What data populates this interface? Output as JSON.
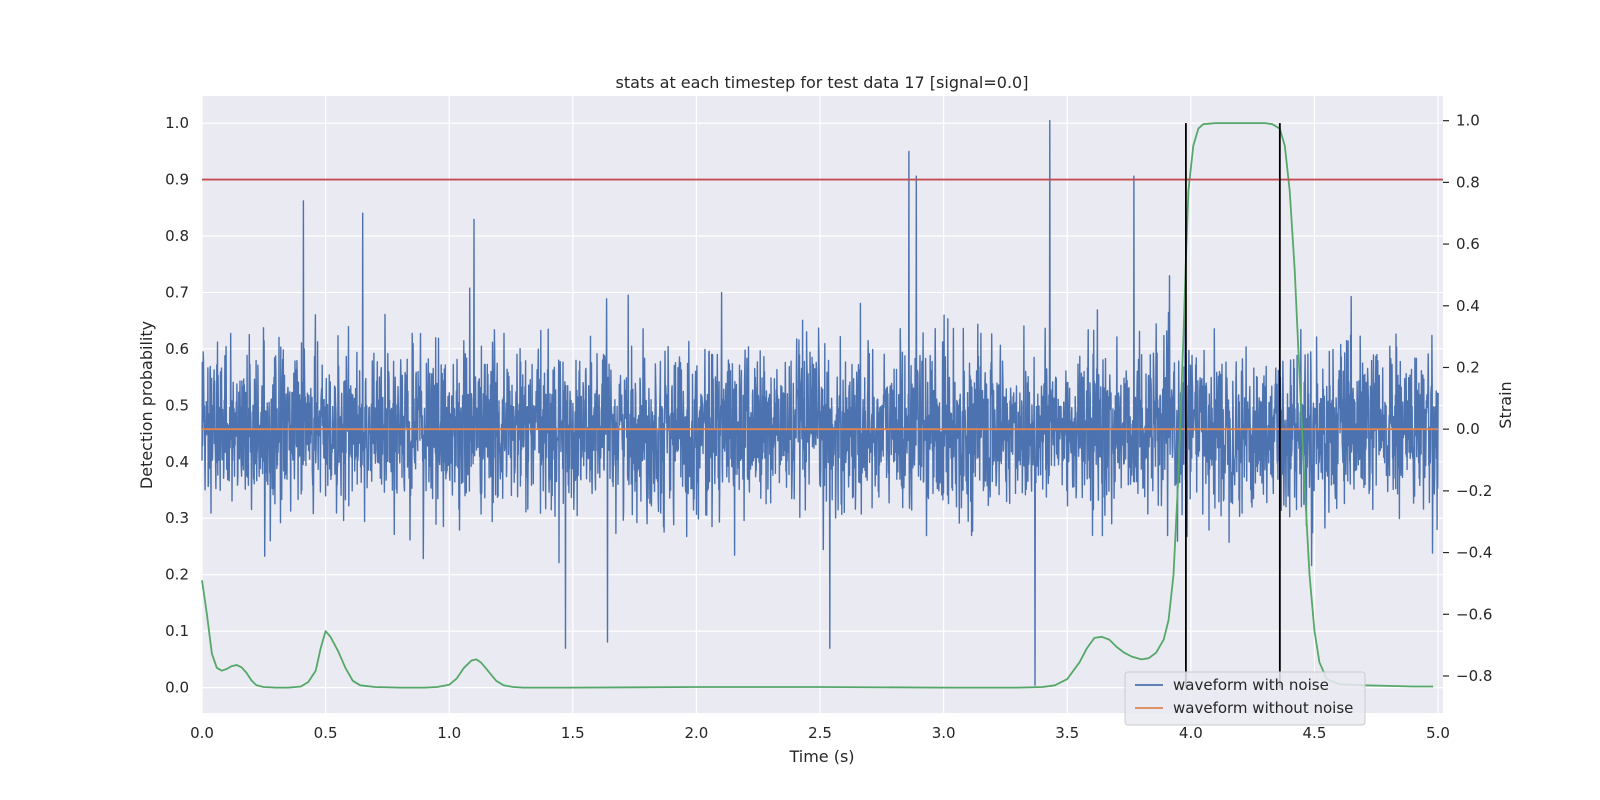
{
  "chart_data": {
    "type": "line",
    "title": "stats at each timestep for test data 17 [signal=0.0]",
    "xlabel": "Time (s)",
    "ylabel": "Detection probability",
    "ylabel_right": "Strain",
    "xlim": [
      0.0,
      5.02
    ],
    "ylim": [
      -0.045,
      1.048
    ],
    "ylim_right": [
      -0.92,
      1.08
    ],
    "xticks": [
      0.0,
      0.5,
      1.0,
      1.5,
      2.0,
      2.5,
      3.0,
      3.5,
      4.0,
      4.5,
      5.0
    ],
    "xtick_labels": [
      "0.0",
      "0.5",
      "1.0",
      "1.5",
      "2.0",
      "2.5",
      "3.0",
      "3.5",
      "4.0",
      "4.5",
      "5.0"
    ],
    "yticks": [
      0.0,
      0.1,
      0.2,
      0.3,
      0.4,
      0.5,
      0.6,
      0.7,
      0.8,
      0.9,
      1.0
    ],
    "ytick_labels": [
      "0.0",
      "0.1",
      "0.2",
      "0.3",
      "0.4",
      "0.5",
      "0.6",
      "0.7",
      "0.8",
      "0.9",
      "1.0"
    ],
    "yticks_right": [
      -0.8,
      -0.6,
      -0.4,
      -0.2,
      0.0,
      0.2,
      0.4,
      0.6,
      0.8,
      1.0
    ],
    "ytick_labels_right": [
      "−0.8",
      "−0.6",
      "−0.4",
      "−0.2",
      "0.0",
      "0.2",
      "0.4",
      "0.6",
      "0.8",
      "1.0"
    ],
    "grid": true,
    "legend_position": "lower-right",
    "colors": {
      "noise": "#4c72b0",
      "clean": "#dd8452",
      "probability": "#55a868",
      "threshold": "#c44e52",
      "boundary": "#000000",
      "background": "#eaeaf2",
      "grid": "#ffffff"
    },
    "series": [
      {
        "name": "waveform with noise",
        "axis": "right",
        "x_range": [
          0.0,
          5.0
        ],
        "noise_std": 0.13,
        "mean": 0.0,
        "peaks": [
          {
            "x": 0.41,
            "y": 0.74
          },
          {
            "x": 0.65,
            "y": 0.7
          },
          {
            "x": 1.1,
            "y": 0.68
          },
          {
            "x": 2.86,
            "y": 0.9
          },
          {
            "x": 2.89,
            "y": 0.82
          },
          {
            "x": 3.43,
            "y": 1.0
          },
          {
            "x": 3.77,
            "y": 0.82
          },
          {
            "x": 3.37,
            "y": -0.83
          },
          {
            "x": 1.47,
            "y": -0.71
          },
          {
            "x": 1.64,
            "y": -0.69
          },
          {
            "x": 2.54,
            "y": -0.71
          }
        ]
      },
      {
        "name": "waveform without noise",
        "axis": "right",
        "x": [
          0.0,
          5.0
        ],
        "y": [
          0.0,
          0.0
        ]
      },
      {
        "name": "",
        "axis": "left",
        "x": [
          0.0,
          0.02,
          0.04,
          0.06,
          0.08,
          0.1,
          0.12,
          0.14,
          0.16,
          0.18,
          0.2,
          0.22,
          0.25,
          0.3,
          0.35,
          0.4,
          0.43,
          0.46,
          0.48,
          0.5,
          0.52,
          0.55,
          0.58,
          0.61,
          0.64,
          0.7,
          0.8,
          0.9,
          0.95,
          1.0,
          1.03,
          1.06,
          1.09,
          1.11,
          1.13,
          1.16,
          1.19,
          1.22,
          1.26,
          1.3,
          1.5,
          2.0,
          2.5,
          3.0,
          3.3,
          3.4,
          3.45,
          3.5,
          3.55,
          3.58,
          3.61,
          3.64,
          3.67,
          3.7,
          3.73,
          3.76,
          3.8,
          3.83,
          3.86,
          3.89,
          3.91,
          3.93,
          3.95,
          3.97,
          3.98,
          3.99,
          4.01,
          4.03,
          4.05,
          4.1,
          4.2,
          4.3,
          4.33,
          4.36,
          4.38,
          4.4,
          4.42,
          4.44,
          4.46,
          4.48,
          4.5,
          4.52,
          4.55,
          4.6,
          4.7,
          4.8,
          4.9,
          4.98
        ],
        "y": [
          0.19,
          0.13,
          0.06,
          0.035,
          0.03,
          0.033,
          0.038,
          0.04,
          0.036,
          0.026,
          0.013,
          0.004,
          0.001,
          0.0,
          0.0,
          0.002,
          0.01,
          0.03,
          0.07,
          0.1,
          0.09,
          0.065,
          0.035,
          0.012,
          0.004,
          0.001,
          0.0,
          0.0,
          0.001,
          0.005,
          0.016,
          0.035,
          0.048,
          0.05,
          0.044,
          0.028,
          0.012,
          0.004,
          0.001,
          0.0,
          0.0,
          0.001,
          0.001,
          0.0,
          0.0,
          0.001,
          0.004,
          0.015,
          0.045,
          0.07,
          0.088,
          0.09,
          0.085,
          0.072,
          0.062,
          0.055,
          0.05,
          0.052,
          0.062,
          0.085,
          0.12,
          0.2,
          0.38,
          0.62,
          0.76,
          0.88,
          0.96,
          0.99,
          0.998,
          1.0,
          1.0,
          1.0,
          0.998,
          0.99,
          0.96,
          0.88,
          0.74,
          0.55,
          0.36,
          0.2,
          0.1,
          0.045,
          0.015,
          0.006,
          0.004,
          0.003,
          0.002,
          0.002
        ]
      }
    ],
    "hlines": [
      {
        "y": 0.9,
        "axis": "left"
      }
    ],
    "vlines": [
      {
        "x": 3.98
      },
      {
        "x": 4.36
      }
    ],
    "legend": [
      "waveform with noise",
      "waveform without noise"
    ]
  }
}
